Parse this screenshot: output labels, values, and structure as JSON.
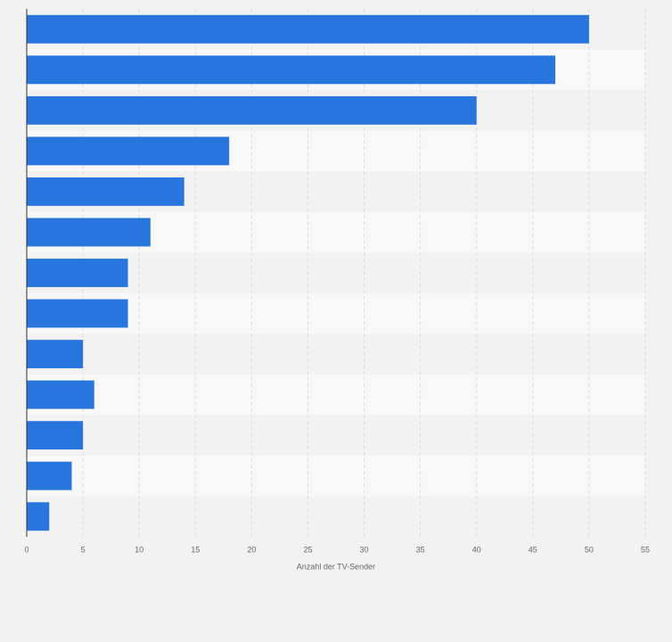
{
  "chart_data": {
    "type": "barh",
    "categories": [
      null,
      null,
      null,
      null,
      null,
      null,
      null,
      null,
      null,
      null,
      null,
      null,
      null
    ],
    "values": [
      50,
      47,
      40,
      18,
      14,
      11,
      9,
      9,
      5,
      6,
      5,
      4,
      2
    ],
    "color": "#2876dd",
    "xlabel": "Anzahl der TV-Sender",
    "xlim": [
      0,
      55
    ],
    "xticks": [
      0,
      5,
      10,
      15,
      20,
      25,
      30,
      35,
      40,
      45,
      50,
      55
    ],
    "grid": true
  }
}
